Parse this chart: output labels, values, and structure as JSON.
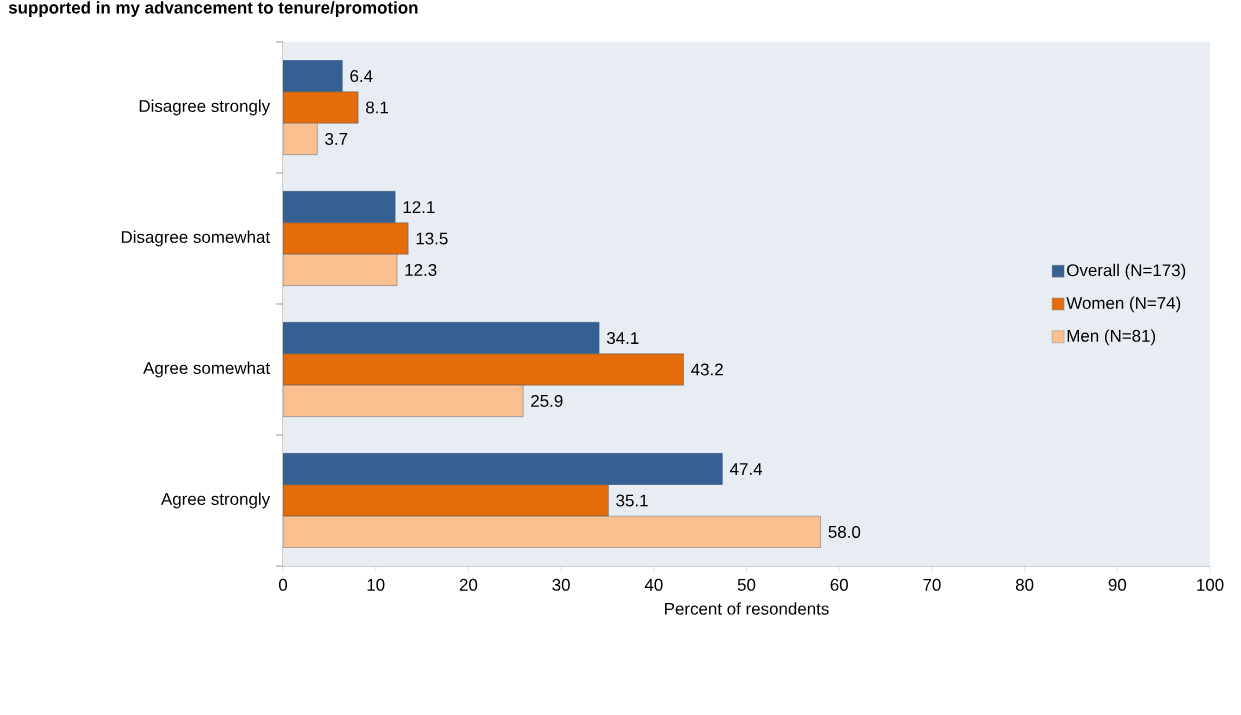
{
  "chart_data": {
    "type": "bar",
    "orientation": "horizontal",
    "title": "supported in my advancement to tenure/promotion",
    "xlabel": "Percent of resondents",
    "categories": [
      "Disagree strongly",
      "Disagree somewhat",
      "Agree somewhat",
      "Agree strongly"
    ],
    "series": [
      {
        "name": "Overall (N=173)",
        "color": "#376092",
        "values": [
          6.4,
          12.1,
          34.1,
          47.4
        ],
        "value_labels": [
          "6.4",
          "12.1",
          "34.1",
          "47.4"
        ]
      },
      {
        "name": "Women (N=74)",
        "color": "#e46c0a",
        "values": [
          8.1,
          13.5,
          43.2,
          35.1
        ],
        "value_labels": [
          "8.1",
          "13.5",
          "43.2",
          "35.1"
        ]
      },
      {
        "name": "Men (N=81)",
        "color": "#fac090",
        "values": [
          3.7,
          12.3,
          25.9,
          58.0
        ],
        "value_labels": [
          "3.7",
          "12.3",
          "25.9",
          "58.0"
        ]
      }
    ],
    "xlim": [
      0,
      100
    ],
    "xticks": [
      0,
      10,
      20,
      30,
      40,
      50,
      60,
      70,
      80,
      90,
      100
    ],
    "legend": "right"
  }
}
